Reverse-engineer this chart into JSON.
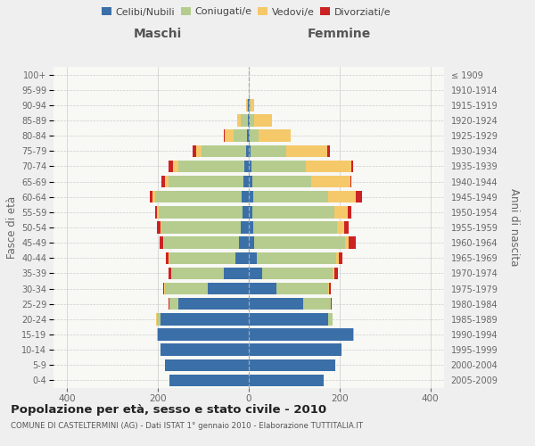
{
  "age_groups": [
    "0-4",
    "5-9",
    "10-14",
    "15-19",
    "20-24",
    "25-29",
    "30-34",
    "35-39",
    "40-44",
    "45-49",
    "50-54",
    "55-59",
    "60-64",
    "65-69",
    "70-74",
    "75-79",
    "80-84",
    "85-89",
    "90-94",
    "95-99",
    "100+"
  ],
  "birth_years": [
    "2005-2009",
    "2000-2004",
    "1995-1999",
    "1990-1994",
    "1985-1989",
    "1980-1984",
    "1975-1979",
    "1970-1974",
    "1965-1969",
    "1960-1964",
    "1955-1959",
    "1950-1954",
    "1945-1949",
    "1940-1944",
    "1935-1939",
    "1930-1934",
    "1925-1929",
    "1920-1924",
    "1915-1919",
    "1910-1914",
    "≤ 1909"
  ],
  "maschi": {
    "celibe": [
      175,
      185,
      195,
      200,
      195,
      155,
      90,
      55,
      30,
      22,
      18,
      14,
      16,
      12,
      10,
      5,
      3,
      2,
      1,
      0,
      0
    ],
    "coniugato": [
      0,
      0,
      0,
      2,
      8,
      20,
      95,
      115,
      145,
      165,
      175,
      185,
      190,
      165,
      145,
      100,
      30,
      15,
      3,
      0,
      0
    ],
    "vedovo": [
      0,
      0,
      0,
      0,
      1,
      0,
      1,
      1,
      1,
      1,
      2,
      3,
      6,
      8,
      12,
      10,
      20,
      8,
      2,
      0,
      0
    ],
    "divorziato": [
      0,
      0,
      0,
      0,
      0,
      1,
      2,
      5,
      7,
      8,
      8,
      5,
      5,
      8,
      10,
      8,
      1,
      0,
      0,
      0,
      0
    ]
  },
  "femmine": {
    "nubile": [
      165,
      190,
      205,
      230,
      175,
      120,
      60,
      30,
      18,
      12,
      10,
      8,
      10,
      8,
      5,
      3,
      2,
      2,
      1,
      0,
      0
    ],
    "coniugata": [
      0,
      0,
      0,
      2,
      10,
      60,
      115,
      155,
      175,
      200,
      185,
      180,
      165,
      130,
      120,
      80,
      20,
      10,
      2,
      0,
      0
    ],
    "vedova": [
      0,
      0,
      0,
      0,
      0,
      1,
      2,
      3,
      5,
      8,
      15,
      30,
      60,
      85,
      100,
      90,
      70,
      40,
      8,
      1,
      0
    ],
    "divorziata": [
      0,
      0,
      0,
      0,
      0,
      1,
      4,
      8,
      8,
      15,
      10,
      8,
      15,
      3,
      5,
      5,
      1,
      0,
      0,
      0,
      0
    ]
  },
  "colors": {
    "celibe": "#3a6fa8",
    "coniugato": "#b5cc8e",
    "vedovo": "#f5c96a",
    "divorziato": "#cc2222"
  },
  "xlim": 430,
  "xticks": [
    -400,
    -200,
    0,
    200,
    400
  ],
  "title": "Popolazione per età, sesso e stato civile - 2010",
  "subtitle": "COMUNE DI CASTELTERMINI (AG) - Dati ISTAT 1° gennaio 2010 - Elaborazione TUTTITALIA.IT",
  "ylabel_left": "Fasce di età",
  "ylabel_right": "Anni di nascita",
  "xlabel_maschi": "Maschi",
  "xlabel_femmine": "Femmine",
  "legend_labels": [
    "Celibi/Nubili",
    "Coniugati/e",
    "Vedovi/e",
    "Divorziati/e"
  ],
  "bg_color": "#efefef",
  "plot_bg": "#f8f8f5"
}
